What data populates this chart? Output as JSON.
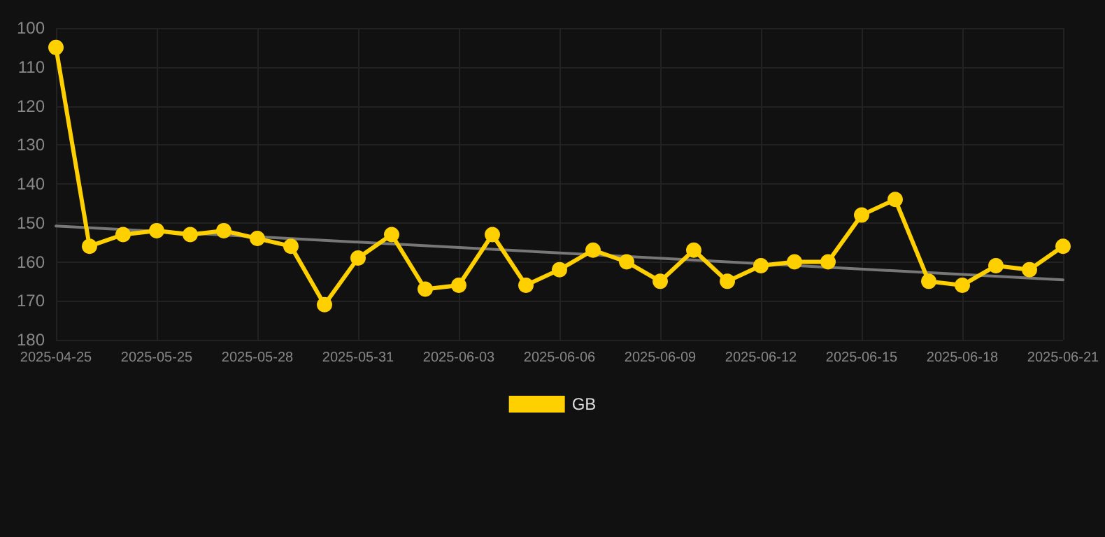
{
  "chart_data": {
    "type": "line",
    "categories": [
      "2025-04-25",
      null,
      null,
      "2025-05-25",
      null,
      null,
      "2025-05-28",
      null,
      null,
      "2025-05-31",
      null,
      null,
      "2025-06-03",
      null,
      null,
      "2025-06-06",
      null,
      null,
      "2025-06-09",
      null,
      null,
      "2025-06-12",
      null,
      null,
      "2025-06-15",
      null,
      null,
      "2025-06-18",
      null,
      null,
      "2025-06-21"
    ],
    "series": [
      {
        "name": "GB",
        "color": "#ffd000",
        "values": [
          105,
          156,
          153,
          152,
          153,
          152,
          154,
          156,
          171,
          159,
          153,
          167,
          166,
          153,
          166,
          162,
          157,
          160,
          165,
          157,
          165,
          161,
          160,
          160,
          148,
          144,
          165,
          166,
          161,
          162,
          156
        ]
      },
      {
        "type": "line",
        "color": "#777777",
        "marker": "none",
        "values": [
          150.8,
          null,
          null,
          null,
          null,
          null,
          null,
          null,
          null,
          null,
          null,
          null,
          null,
          null,
          null,
          null,
          null,
          null,
          null,
          null,
          null,
          null,
          null,
          null,
          null,
          null,
          null,
          null,
          null,
          null,
          164.6
        ]
      }
    ],
    "ylim": [
      180,
      100
    ],
    "yticks": [
      100,
      110,
      120,
      130,
      140,
      150,
      160,
      170,
      180
    ],
    "grid": true,
    "legend": "bottom",
    "marker": "circle",
    "line_style": "solid"
  }
}
